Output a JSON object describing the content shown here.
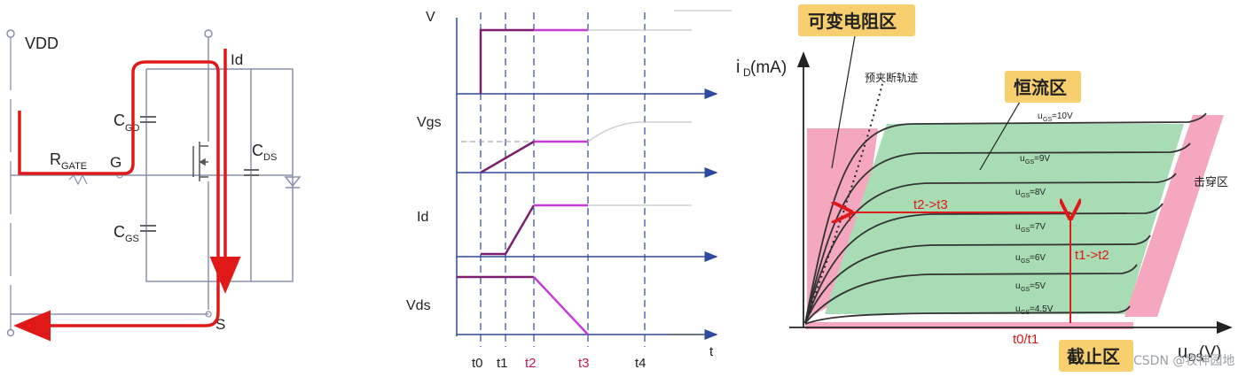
{
  "circuit": {
    "vdd": "VDD",
    "id": "Id",
    "cgd": "C",
    "cgd_sub": "GD",
    "rgate": "R",
    "rgate_sub": "GATE",
    "g": "G",
    "cds": "C",
    "cds_sub": "DS",
    "cgs": "C",
    "cgs_sub": "GS",
    "s": "S"
  },
  "waveform": {
    "signals": [
      "V",
      "Vgs",
      "Id",
      "Vds"
    ],
    "times": [
      "t0",
      "t1",
      "t2",
      "t3",
      "t4",
      "t"
    ]
  },
  "output_curve": {
    "y_axis": "i",
    "y_axis_sub": "D",
    "y_axis_unit": " (mA)",
    "x_axis": "u",
    "x_axis_sub": "DS",
    "x_axis_unit": " (V)",
    "regions": {
      "ohmic": "可变电阻区",
      "saturation": "恒流区",
      "cutoff": "截止区",
      "breakdown": "击穿区",
      "pinch_off": "预夹断轨迹"
    },
    "curve_labels": [
      {
        "u": "u",
        "sub": "GS",
        "val": "=10V"
      },
      {
        "u": "u",
        "sub": "GS",
        "val": "=9V"
      },
      {
        "u": "u",
        "sub": "GS",
        "val": "=8V"
      },
      {
        "u": "u",
        "sub": "GS",
        "val": "=7V"
      },
      {
        "u": "u",
        "sub": "GS",
        "val": "=6V"
      },
      {
        "u": "u",
        "sub": "GS",
        "val": "=5V"
      },
      {
        "u": "u",
        "sub": "GS",
        "val": "=4.5V"
      }
    ],
    "annotations": {
      "t2_t3": "t2->t3",
      "t1_t2": "t1->t2",
      "t0_t1": "t0/t1"
    },
    "watermark": "CSDN @牧神园地"
  },
  "colors": {
    "red": "#e01818",
    "magenta": "#c33cd6",
    "dark_purple": "#7b1f6e",
    "blue": "#2b4a9c",
    "green_region": "#a8dcb5",
    "pink_region": "#f4a7be",
    "tag_bg": "#f7cf6e"
  }
}
